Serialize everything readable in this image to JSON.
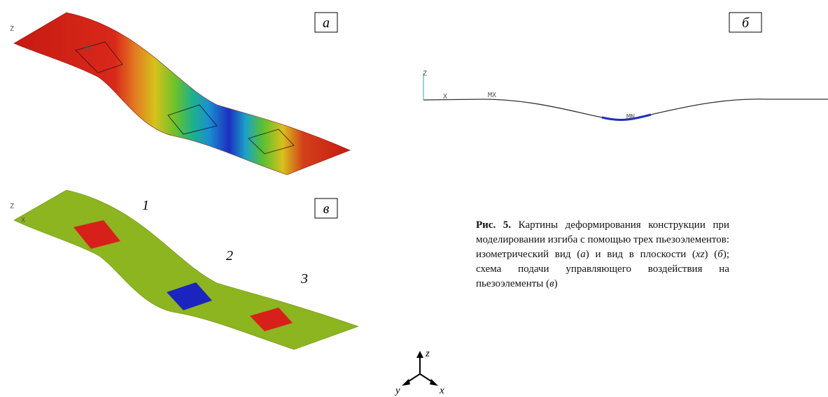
{
  "panels": {
    "a": {
      "label": "а",
      "axis_z": "Z",
      "mx": "MX"
    },
    "b": {
      "label": "б",
      "axis_z": "Z",
      "axis_x": "X",
      "mx": "MX",
      "mn": "MN"
    },
    "v": {
      "label": "в",
      "axis_z": "Z",
      "axis_x": "X",
      "numbers": [
        "1",
        "2",
        "3"
      ]
    }
  },
  "triad": {
    "z": "z",
    "y": "y",
    "x": "x"
  },
  "caption": {
    "label": "Рис. 5.",
    "segments": [
      "Картины деформирования конструкции при моделировании изгиба с помощью трех пьезоэлементов: изометрический вид (",
      "а",
      ") и вид в плоскости (",
      "xz",
      ") (",
      "б",
      "); схема подачи управляющего воздействия на пьезоэлементы (",
      "в",
      ")"
    ]
  }
}
